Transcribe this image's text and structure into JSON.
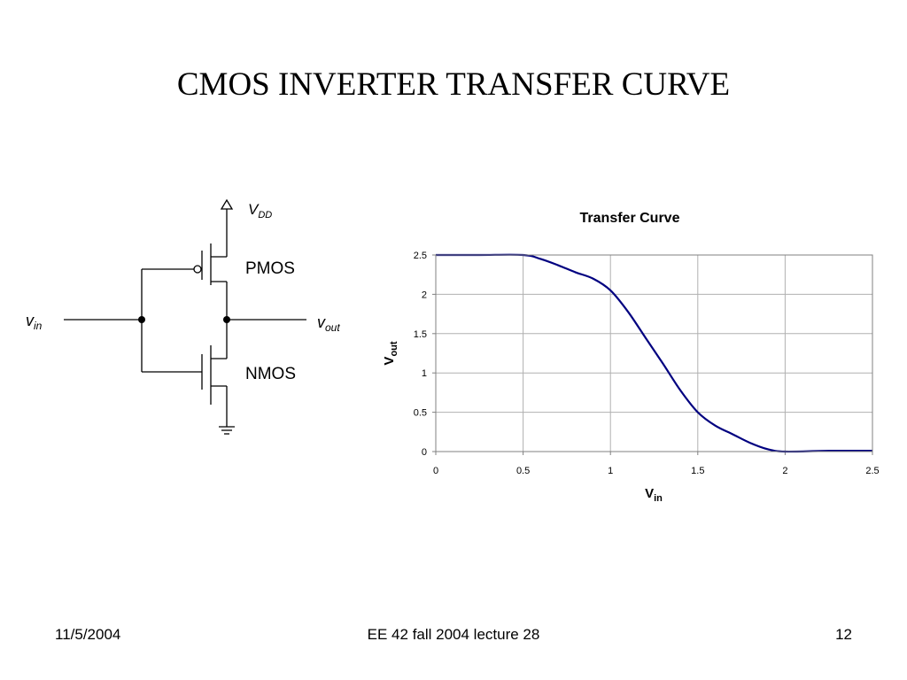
{
  "slide": {
    "title": "CMOS INVERTER TRANSFER CURVE",
    "footer_left": "11/5/2004",
    "footer_center": "EE 42 fall 2004 lecture 28",
    "footer_right": "12"
  },
  "circuit": {
    "supply_label": {
      "base": "V",
      "sub": "DD"
    },
    "input_label": {
      "base": "v",
      "sub": "in"
    },
    "output_label": {
      "base": "v",
      "sub": "out"
    },
    "pmos_label": "PMOS",
    "nmos_label": "NMOS"
  },
  "chart_data": {
    "type": "line",
    "title": "Transfer Curve",
    "xlabel": {
      "base": "V",
      "sub": "in"
    },
    "ylabel": {
      "base": "V",
      "sub": "out"
    },
    "xlim": [
      0,
      2.5
    ],
    "ylim": [
      0,
      2.5
    ],
    "xticks": [
      "0",
      "0.5",
      "1",
      "1.5",
      "2",
      "2.5"
    ],
    "yticks": [
      "0",
      "0.5",
      "1",
      "1.5",
      "2",
      "2.5"
    ],
    "grid": true,
    "line_color": "#000080",
    "series": [
      {
        "x": [
          0,
          0.25,
          0.5,
          0.6,
          0.7,
          0.8,
          0.9,
          1.0,
          1.1,
          1.2,
          1.3,
          1.4,
          1.5,
          1.6,
          1.7,
          1.8,
          1.9,
          2.0,
          2.25,
          2.5
        ],
        "y": [
          2.5,
          2.5,
          2.5,
          2.45,
          2.37,
          2.28,
          2.2,
          2.05,
          1.78,
          1.45,
          1.12,
          0.78,
          0.5,
          0.33,
          0.22,
          0.11,
          0.03,
          0,
          0.01,
          0.01
        ]
      }
    ]
  }
}
